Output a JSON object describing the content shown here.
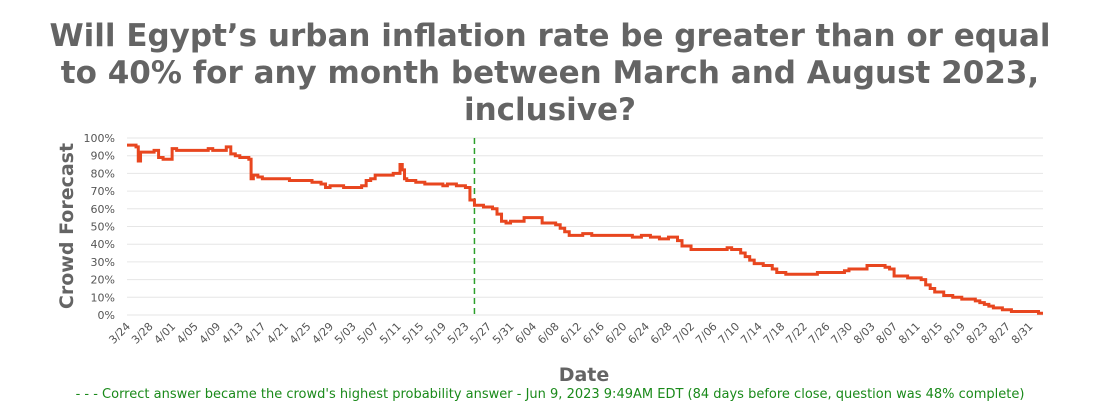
{
  "title_lines": [
    "Will Egypt’s urban inflation rate be greater than or equal",
    "to 40% for any month between March and August 2023,",
    "inclusive?"
  ],
  "footnote": "- - - Correct answer became the crowd's highest probability answer - Jun 9, 2023 9:49AM EDT (84 days before close, question was 48% complete)",
  "colors": {
    "line": "#e8461f",
    "marker": "#2ca02c",
    "grid": "#e6e6e6",
    "text": "#646464"
  },
  "chart_data": {
    "type": "line",
    "title": "Will Egypt’s urban inflation rate be greater than or equal to 40% for any month between March and August 2023, inclusive?",
    "xlabel": "Date",
    "ylabel": "Crowd Forecast",
    "ylim": [
      0,
      100
    ],
    "yticks": [
      "0%",
      "10%",
      "20%",
      "30%",
      "40%",
      "50%",
      "60%",
      "70%",
      "80%",
      "90%",
      "100%"
    ],
    "xticks": [
      "3/24",
      "3/28",
      "4/01",
      "4/05",
      "4/09",
      "4/13",
      "4/17",
      "4/21",
      "4/25",
      "4/29",
      "5/03",
      "5/07",
      "5/11",
      "5/15",
      "5/19",
      "5/23",
      "5/27",
      "5/31",
      "6/04",
      "6/08",
      "6/12",
      "6/16",
      "6/20",
      "6/24",
      "6/28",
      "7/02",
      "7/06",
      "7/10",
      "7/14",
      "7/18",
      "7/22",
      "7/26",
      "7/30",
      "8/03",
      "8/07",
      "8/11",
      "8/15",
      "8/19",
      "8/23",
      "8/27",
      "8/31"
    ],
    "grid": true,
    "marker": {
      "date": "6/09",
      "day_index": 77,
      "label": "Correct answer became the crowd's highest probability answer"
    },
    "series": [
      {
        "name": "Crowd Forecast",
        "points": [
          [
            0,
            96
          ],
          [
            1.5,
            96
          ],
          [
            2,
            95
          ],
          [
            2.5,
            87
          ],
          [
            3,
            92
          ],
          [
            4,
            92
          ],
          [
            5,
            92
          ],
          [
            6,
            93
          ],
          [
            7,
            89
          ],
          [
            8,
            88
          ],
          [
            9,
            88
          ],
          [
            10,
            94
          ],
          [
            11,
            93
          ],
          [
            13,
            93
          ],
          [
            15,
            93
          ],
          [
            17,
            93
          ],
          [
            18,
            94
          ],
          [
            19,
            93
          ],
          [
            21,
            93
          ],
          [
            22,
            95
          ],
          [
            23,
            91
          ],
          [
            24,
            90
          ],
          [
            25,
            89
          ],
          [
            27,
            88
          ],
          [
            27.5,
            77
          ],
          [
            28,
            79
          ],
          [
            29,
            78
          ],
          [
            30,
            77
          ],
          [
            33,
            77
          ],
          [
            36,
            76
          ],
          [
            39,
            76
          ],
          [
            41,
            75
          ],
          [
            43,
            74
          ],
          [
            44,
            72
          ],
          [
            45,
            73
          ],
          [
            47,
            73
          ],
          [
            48,
            72
          ],
          [
            51,
            72
          ],
          [
            52,
            73
          ],
          [
            53,
            76
          ],
          [
            54,
            77
          ],
          [
            55,
            79
          ],
          [
            57,
            79
          ],
          [
            59,
            80
          ],
          [
            60,
            80
          ],
          [
            60.5,
            85
          ],
          [
            61,
            82
          ],
          [
            61.5,
            77
          ],
          [
            62,
            76
          ],
          [
            64,
            75
          ],
          [
            66,
            74
          ],
          [
            68,
            74
          ],
          [
            70,
            73
          ],
          [
            71,
            74
          ],
          [
            73,
            73
          ],
          [
            75,
            72
          ],
          [
            76,
            65
          ],
          [
            77,
            62
          ],
          [
            79,
            61
          ],
          [
            81,
            60
          ],
          [
            82,
            57
          ],
          [
            83,
            53
          ],
          [
            84,
            52
          ],
          [
            85,
            53
          ],
          [
            87,
            53
          ],
          [
            88,
            55
          ],
          [
            91,
            55
          ],
          [
            92,
            52
          ],
          [
            94,
            52
          ],
          [
            95,
            51
          ],
          [
            96,
            49
          ],
          [
            97,
            47
          ],
          [
            98,
            45
          ],
          [
            100,
            45
          ],
          [
            101,
            46
          ],
          [
            103,
            45
          ],
          [
            105,
            45
          ],
          [
            108,
            45
          ],
          [
            110,
            45
          ],
          [
            112,
            44
          ],
          [
            114,
            45
          ],
          [
            116,
            44
          ],
          [
            118,
            43
          ],
          [
            120,
            44
          ],
          [
            122,
            42
          ],
          [
            123,
            39
          ],
          [
            125,
            37
          ],
          [
            128,
            37
          ],
          [
            131,
            37
          ],
          [
            133,
            38
          ],
          [
            134,
            37
          ],
          [
            136,
            35
          ],
          [
            137,
            33
          ],
          [
            138,
            31
          ],
          [
            139,
            29
          ],
          [
            141,
            28
          ],
          [
            143,
            26
          ],
          [
            144,
            24
          ],
          [
            146,
            23
          ],
          [
            149,
            23
          ],
          [
            151,
            23
          ],
          [
            153,
            24
          ],
          [
            156,
            24
          ],
          [
            159,
            25
          ],
          [
            160,
            26
          ],
          [
            163,
            26
          ],
          [
            164,
            28
          ],
          [
            166,
            28
          ],
          [
            168,
            27
          ],
          [
            169,
            26
          ],
          [
            170,
            22
          ],
          [
            172,
            22
          ],
          [
            173,
            21
          ],
          [
            175,
            21
          ],
          [
            176,
            20
          ],
          [
            177,
            17
          ],
          [
            178,
            15
          ],
          [
            179,
            13
          ],
          [
            181,
            11
          ],
          [
            183,
            10
          ],
          [
            185,
            9
          ],
          [
            187,
            9
          ],
          [
            188,
            8
          ],
          [
            189,
            7
          ],
          [
            190,
            6
          ],
          [
            191,
            5
          ],
          [
            192,
            4
          ],
          [
            194,
            3
          ],
          [
            196,
            2
          ],
          [
            198,
            2
          ],
          [
            200,
            2
          ],
          [
            202,
            1
          ],
          [
            203,
            1
          ]
        ]
      }
    ]
  }
}
